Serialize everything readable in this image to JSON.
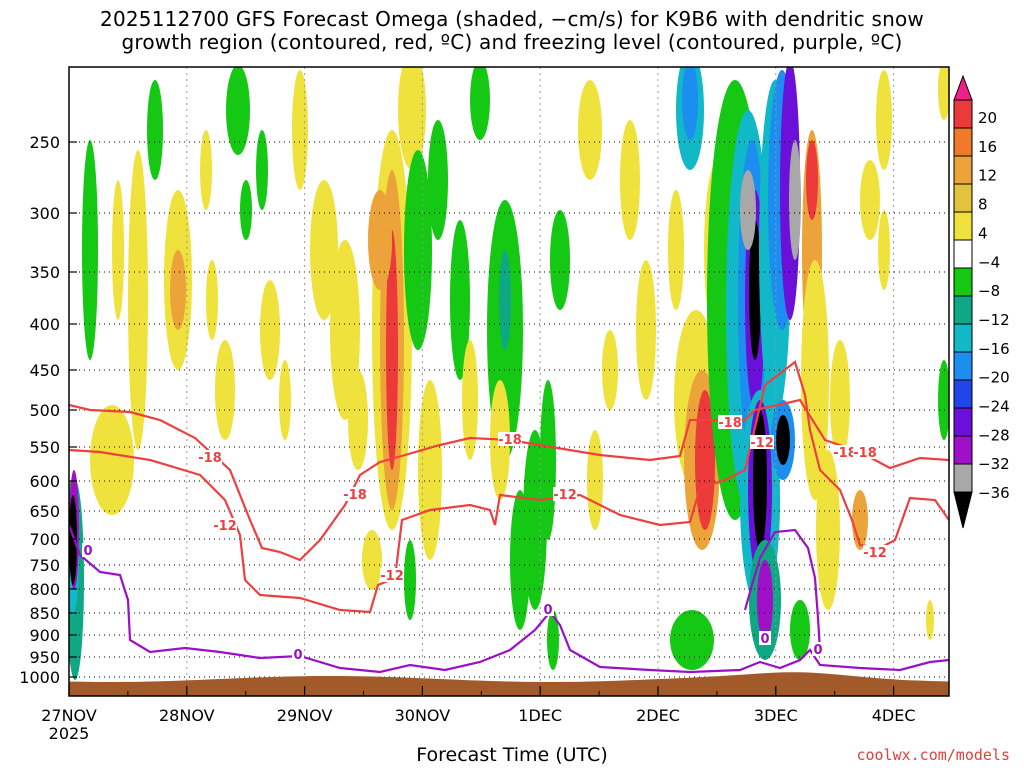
{
  "title_line1": "2025112700 GFS Forecast Omega (shaded, −cm/s) for K9B6 with dendritic snow",
  "title_line2": "growth region (contoured, red, ºC) and freezing level (contoured, purple, ºC)",
  "xlabel": "Forecast Time (UTC)",
  "credit": "coolwx.com/models",
  "chart_data": {
    "type": "heatmap",
    "variable": "Omega (-cm/s)",
    "x_ticks": [
      "27NOV",
      "28NOV",
      "29NOV",
      "30NOV",
      "1DEC",
      "2DEC",
      "3DEC",
      "4DEC"
    ],
    "x_year_label": "2025",
    "x_range_days": [
      0,
      7.5
    ],
    "y_ticks": [
      250,
      300,
      350,
      400,
      450,
      500,
      550,
      600,
      650,
      700,
      750,
      800,
      850,
      900,
      950,
      1000
    ],
    "y_axis": "pressure (hPa), inverted",
    "y_range": [
      200,
      1030
    ],
    "grid": true,
    "colorbar": {
      "labels": [
        "20",
        "16",
        "12",
        "8",
        "4",
        "−4",
        "−8",
        "−12",
        "−16",
        "−20",
        "−24",
        "−28",
        "−32",
        "−36"
      ],
      "colors": [
        "#f01f8a",
        "#ec3a3a",
        "#ee7a2a",
        "#eca43a",
        "#e3c23c",
        "#f0e23c",
        "#ffffff",
        "#14c814",
        "#0ea884",
        "#10b8c8",
        "#1c8ef0",
        "#1e46e8",
        "#6a10d8",
        "#a010c8",
        "#a8a8a8",
        "#000000"
      ],
      "placement": "right"
    },
    "contours": [
      {
        "color": "#ee4040",
        "labels": [
          "-18",
          "-18",
          "-18",
          "-18",
          "-18",
          "-12",
          "-12",
          "-12",
          "-12",
          "-12",
          "-18"
        ]
      },
      {
        "color": "#9a10c8",
        "labels": [
          "0",
          "0",
          "0",
          "0",
          "0"
        ]
      }
    ],
    "terrain_color": "#a35a2a"
  }
}
